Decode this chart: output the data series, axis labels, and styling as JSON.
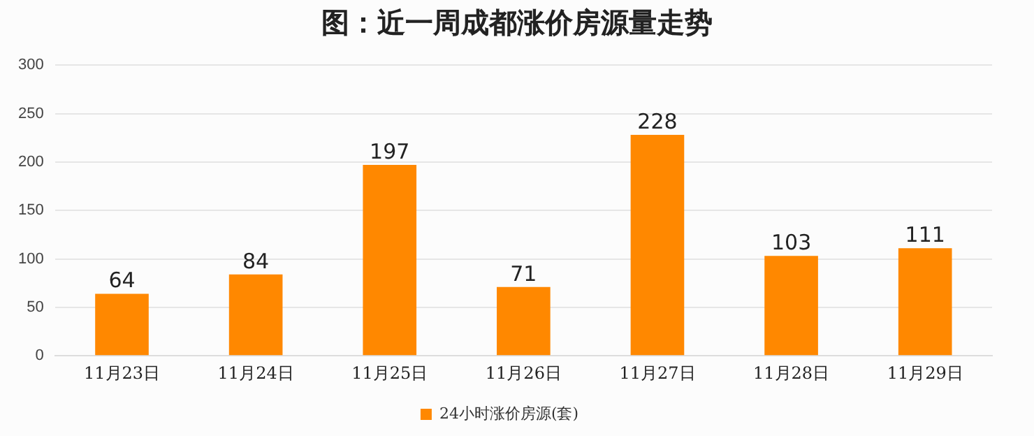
{
  "chart_data": {
    "type": "bar",
    "title": "图：近一周成都涨价房源量走势",
    "categories": [
      "11月23日",
      "11月24日",
      "11月25日",
      "11月26日",
      "11月27日",
      "11月28日",
      "11月29日"
    ],
    "series": [
      {
        "name": "24小时涨价房源(套)",
        "color": "#ff8800",
        "values": [
          64,
          84,
          197,
          71,
          228,
          103,
          111
        ]
      }
    ],
    "ylim": [
      0,
      300
    ],
    "yticks": [
      0,
      50,
      100,
      150,
      200,
      250,
      300
    ],
    "grid": "y",
    "legend": "bottom",
    "data_labels": true
  }
}
